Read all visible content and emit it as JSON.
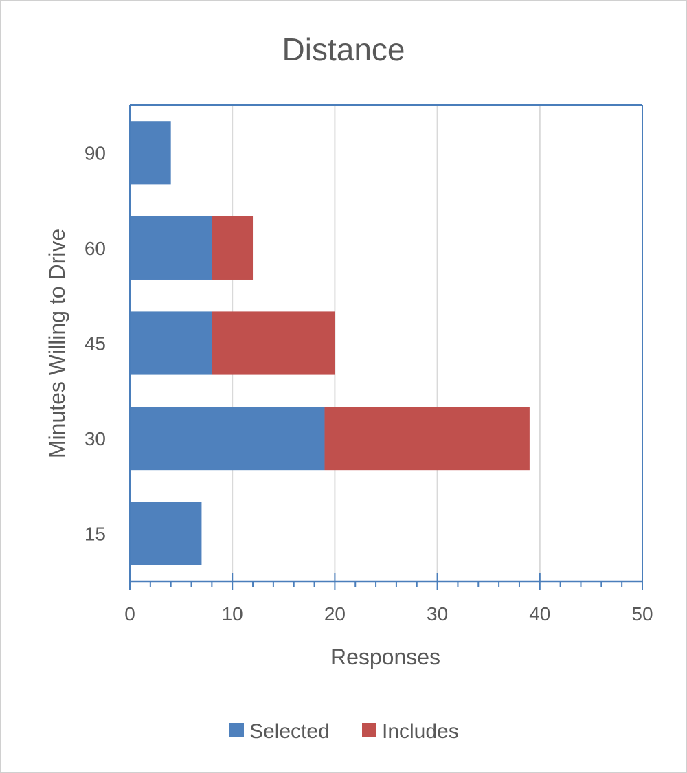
{
  "chart_data": {
    "type": "bar",
    "orientation": "horizontal",
    "stacked": true,
    "title": "Distance",
    "xlabel": "Responses",
    "ylabel": "Minutes Willing to Drive",
    "categories": [
      "15",
      "30",
      "45",
      "60",
      "90"
    ],
    "series": [
      {
        "name": "Selected",
        "color": "#4F81BD",
        "values": [
          7,
          19,
          8,
          8,
          4
        ]
      },
      {
        "name": "Includes",
        "color": "#C0504D",
        "values": [
          0,
          20,
          12,
          4,
          0
        ]
      }
    ],
    "xlim": [
      0,
      50
    ],
    "xticks": [
      "0",
      "10",
      "20",
      "30",
      "40",
      "50"
    ],
    "grid": true,
    "legend": "bottom"
  }
}
